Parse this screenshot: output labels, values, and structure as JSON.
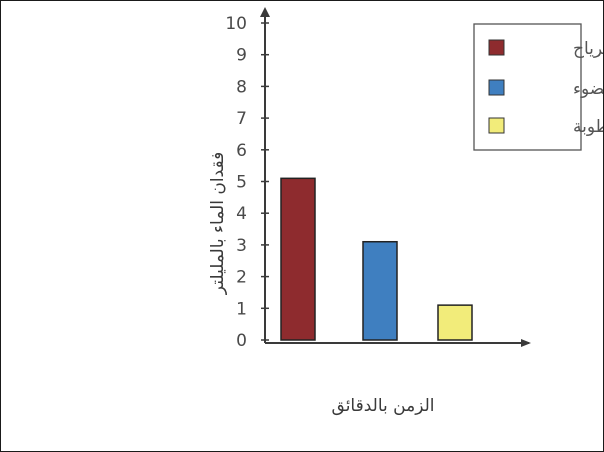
{
  "chart_data": {
    "type": "bar",
    "title": "",
    "xlabel": "الزمن بالدقائق",
    "ylabel": "فقدان الماء بالمليلتر",
    "ylim": [
      0,
      10
    ],
    "yticks": [
      0,
      1,
      2,
      3,
      4,
      5,
      6,
      7,
      8,
      9,
      10
    ],
    "categories": [
      "الرياح",
      "الضوء",
      "الرطوبة"
    ],
    "values": [
      5.1,
      3.1,
      1.1
    ],
    "colors": [
      "#8e2b2e",
      "#3f7fc0",
      "#f2ec7a"
    ],
    "legend": {
      "position": "top-right",
      "entries": [
        {
          "label": "الرياح",
          "color": "#8e2b2e"
        },
        {
          "label": "الضوء",
          "color": "#3f7fc0"
        },
        {
          "label": "الرطوبة",
          "color": "#f2ec7a"
        }
      ]
    },
    "grid": false
  }
}
